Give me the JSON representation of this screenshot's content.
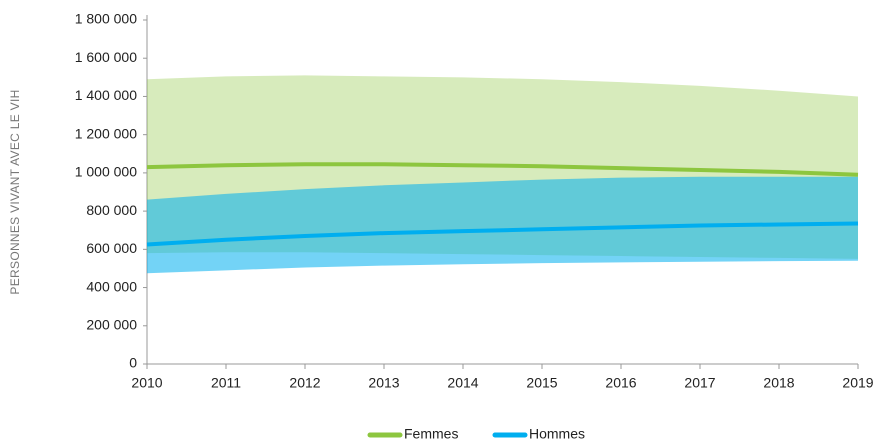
{
  "chart_data": {
    "type": "line",
    "y_label": "PERSONNES VIVANT AVEC LE VIH",
    "x": [
      2010,
      2011,
      2012,
      2013,
      2014,
      2015,
      2016,
      2017,
      2018,
      2019
    ],
    "xlim": [
      2010,
      2019
    ],
    "xticks": [
      2010,
      2011,
      2012,
      2013,
      2014,
      2015,
      2016,
      2017,
      2018,
      2019
    ],
    "ylim": [
      0,
      1800000
    ],
    "yticks": [
      0,
      {
        "value": 200000,
        "label": "200 000"
      },
      {
        "value": 400000,
        "label": "400 000"
      },
      {
        "value": 600000,
        "label": "600 000"
      },
      {
        "value": 800000,
        "label": "800 000"
      },
      {
        "value": 1000000,
        "label": "1 000 000"
      },
      {
        "value": 1200000,
        "label": "1 200 000"
      },
      {
        "value": 1400000,
        "label": "1 400 000"
      },
      {
        "value": 1600000,
        "label": "1 600 000"
      },
      {
        "value": 1800000,
        "label": "1 800 000"
      }
    ],
    "legend": "bottom",
    "series": [
      {
        "name": "Femmes",
        "color": "#8dc63f",
        "values": [
          1030000,
          1040000,
          1045000,
          1045000,
          1040000,
          1035000,
          1025000,
          1015000,
          1005000,
          990000
        ],
        "lower": [
          580000,
          585000,
          585000,
          580000,
          575000,
          570000,
          565000,
          560000,
          555000,
          550000
        ],
        "upper": [
          1490000,
          1505000,
          1510000,
          1505000,
          1500000,
          1490000,
          1475000,
          1455000,
          1430000,
          1400000
        ]
      },
      {
        "name": "Hommes",
        "color": "#00aeef",
        "values": [
          625000,
          650000,
          670000,
          685000,
          695000,
          705000,
          715000,
          725000,
          730000,
          735000
        ],
        "lower": [
          475000,
          490000,
          505000,
          515000,
          522000,
          528000,
          532000,
          535000,
          538000,
          540000
        ],
        "upper": [
          860000,
          890000,
          915000,
          935000,
          950000,
          965000,
          975000,
          980000,
          980000,
          980000
        ]
      }
    ]
  }
}
